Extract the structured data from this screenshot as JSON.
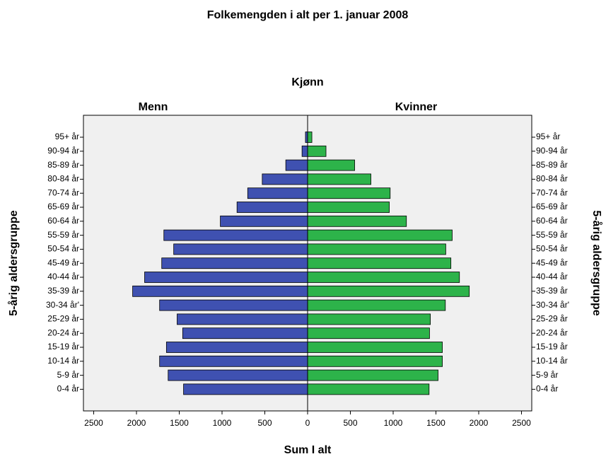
{
  "chart_data": {
    "type": "pyramid",
    "title": "Folkemengden i alt per 1. januar 2008",
    "group_title": "Kjønn",
    "xlabel": "Sum I alt",
    "ylabel": "5-årig aldersgruppe",
    "categories": [
      "95+ år",
      "90-94 år",
      "85-89 år",
      "80-84 år",
      "70-74 år",
      "65-69 år",
      "60-64 år",
      "55-59 år",
      "50-54 år",
      "45-49 år",
      "40-44 år",
      "35-39 år",
      "30-34 år'",
      "25-29 år",
      "20-24 år",
      "15-19 år",
      "10-14 år",
      "5-9 år",
      "0-4 år"
    ],
    "series": [
      {
        "name": "Menn",
        "color": "#3f51b1",
        "side": "left",
        "values": [
          25,
          65,
          255,
          530,
          700,
          825,
          1020,
          1680,
          1565,
          1705,
          1905,
          2045,
          1730,
          1525,
          1460,
          1650,
          1730,
          1630,
          1450
        ]
      },
      {
        "name": "Kvinner",
        "color": "#2db34a",
        "side": "right",
        "values": [
          50,
          215,
          550,
          740,
          965,
          955,
          1155,
          1690,
          1615,
          1675,
          1775,
          1890,
          1610,
          1435,
          1425,
          1575,
          1575,
          1525,
          1420
        ]
      }
    ],
    "xlim": [
      -2620,
      2620
    ],
    "xticks": [
      {
        "value": -2500,
        "label": "2500"
      },
      {
        "value": -2000,
        "label": "2000"
      },
      {
        "value": -1500,
        "label": "1500"
      },
      {
        "value": -1000,
        "label": "1000"
      },
      {
        "value": -500,
        "label": "500"
      },
      0,
      500,
      1000,
      1500,
      2000,
      2500
    ]
  }
}
